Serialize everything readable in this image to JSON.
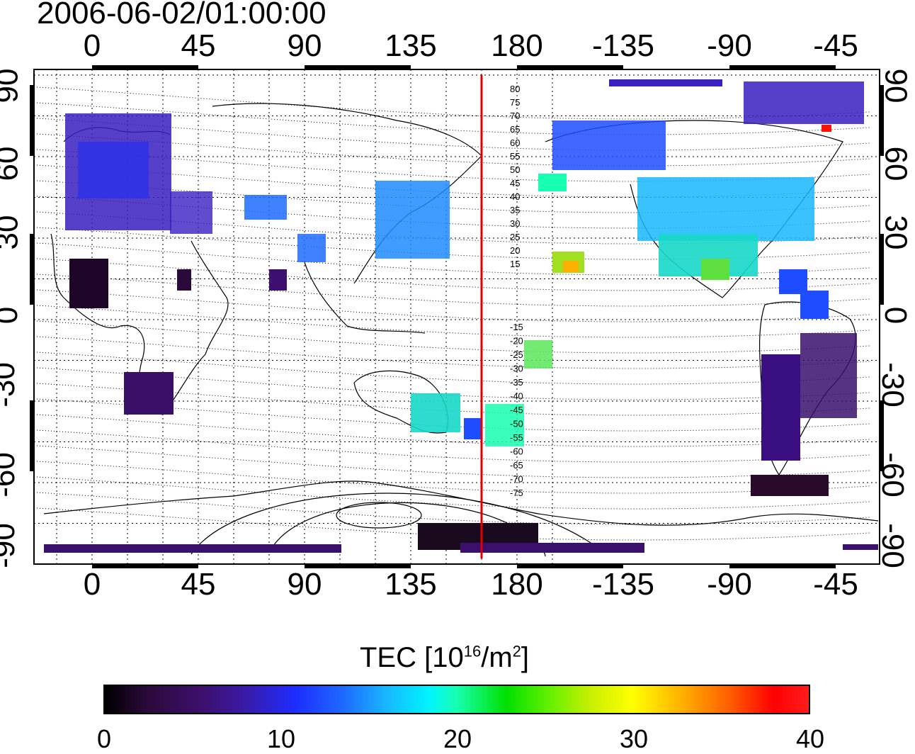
{
  "title": "2006-06-02/01:00:00",
  "map": {
    "x_ticks_top": [
      "0",
      "45",
      "90",
      "135",
      "180",
      "-135",
      "-90",
      "-45"
    ],
    "x_ticks_bottom": [
      "0",
      "45",
      "90",
      "135",
      "180",
      "-135",
      "-90",
      "-45"
    ],
    "y_ticks_left": [
      "90",
      "60",
      "30",
      "0",
      "-30",
      "-60",
      "-90"
    ],
    "y_ticks_right": [
      "90",
      "60",
      "30",
      "0",
      "-30",
      "-60",
      "-90"
    ],
    "meridian_line_longitude": 165,
    "meridian_line_color": "#e00000",
    "contour_labels_north": [
      "80",
      "75",
      "70",
      "65",
      "60",
      "55",
      "50",
      "45",
      "40",
      "35",
      "30",
      "25",
      "20",
      "15"
    ],
    "contour_labels_south": [
      "-15",
      "-20",
      "-25",
      "-30",
      "-35",
      "-40",
      "-45",
      "-50",
      "-55",
      "-60",
      "-65",
      "-70",
      "-75"
    ]
  },
  "colorbar": {
    "label_main": "TEC  [10",
    "label_sup1": "16",
    "label_mid": "/m",
    "label_sup2": "2",
    "label_end": "]",
    "ticks": [
      "0",
      "10",
      "20",
      "30",
      "40"
    ],
    "min": 0,
    "max": 40
  }
}
